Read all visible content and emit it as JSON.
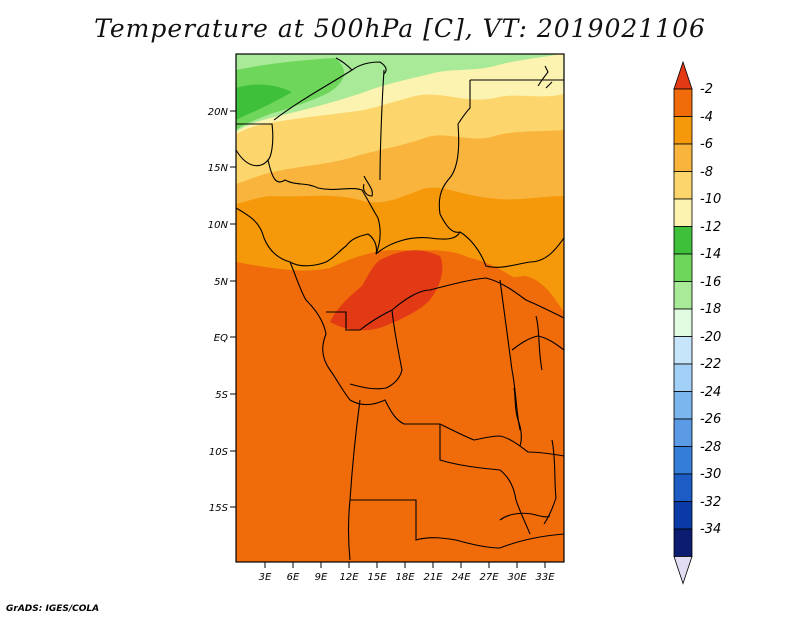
{
  "title": "Temperature at 500hPa [C], VT: 2019021106",
  "credit": "GrADS: IGES/COLA",
  "map": {
    "lat_ticks": [
      "20N",
      "15N",
      "10N",
      "5N",
      "EQ",
      "5S",
      "10S",
      "15S"
    ],
    "lon_ticks": [
      "3E",
      "6E",
      "9E",
      "12E",
      "15E",
      "18E",
      "21E",
      "24E",
      "27E",
      "30E",
      "33E"
    ],
    "region": "Central Africa",
    "lon_range": [
      0,
      35
    ],
    "lat_range": [
      -20,
      25
    ]
  },
  "colorbar": {
    "labels": [
      "-2",
      "-4",
      "-6",
      "-8",
      "-10",
      "-12",
      "-14",
      "-16",
      "-18",
      "-20",
      "-22",
      "-24",
      "-26",
      "-28",
      "-30",
      "-32",
      "-34"
    ],
    "colors": [
      "#e23a15",
      "#f06b0a",
      "#f5990b",
      "#f8b43c",
      "#fcd66c",
      "#fdf3b0",
      "#3fc03a",
      "#6ed65a",
      "#a8ea98",
      "#e0fbe0",
      "#c6e4fa",
      "#a3d0f7",
      "#7cb6ee",
      "#5b9be6",
      "#357ed8",
      "#1c5cc4",
      "#0a3aa6",
      "#0c1c70",
      "#e3ddf4"
    ]
  }
}
